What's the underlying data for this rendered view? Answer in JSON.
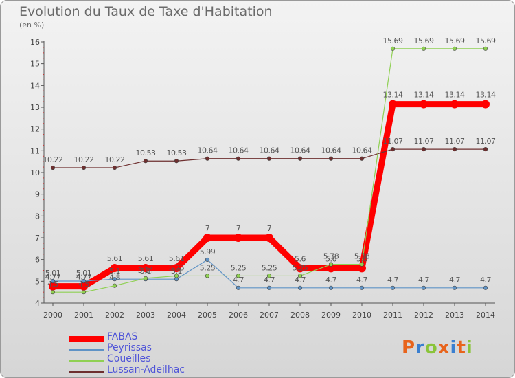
{
  "chart_data": {
    "type": "line",
    "title": "Evolution du Taux de Taxe d'Habitation",
    "subtitle": "(en %)",
    "categories": [
      "2000",
      "2001",
      "2002",
      "2003",
      "2004",
      "2005",
      "2006",
      "2007",
      "2008",
      "2009",
      "2010",
      "2011",
      "2012",
      "2013",
      "2014"
    ],
    "ylim": [
      4,
      16
    ],
    "yticks": [
      4,
      5,
      6,
      7,
      8,
      9,
      10,
      11,
      12,
      13,
      14,
      15,
      16
    ],
    "grid": false,
    "legend_position": "bottom-left",
    "series": [
      {
        "name": "FABAS",
        "color": "#ff0000",
        "values": [
          4.77,
          4.77,
          5.61,
          5.61,
          5.61,
          7,
          7,
          7,
          5.6,
          5.6,
          5.6,
          13.14,
          13.14,
          13.14,
          13.14
        ],
        "labels": [
          "4.77",
          "4.77",
          "5.61",
          "5.61",
          "5.61",
          "7",
          "7",
          "7",
          "5.6",
          "5.6",
          "5.6",
          "13.14",
          "13.14",
          "13.14",
          "13.14"
        ]
      },
      {
        "name": "Peyrissas",
        "color": "#5f93c6",
        "values": [
          5.01,
          5.01,
          5.1,
          5.1,
          5.1,
          5.99,
          4.7,
          4.7,
          4.7,
          4.7,
          4.7,
          4.7,
          4.7,
          4.7,
          4.7
        ],
        "labels": [
          "5.01",
          "5.01",
          "5.1",
          "5.1",
          "5.1",
          "5.99",
          "4.7",
          "4.7",
          "4.7",
          "4.7",
          "4.7",
          "4.7",
          "4.7",
          "4.7",
          "4.7"
        ]
      },
      {
        "name": "Coueilles",
        "color": "#8fd053",
        "values": [
          4.5,
          4.5,
          4.8,
          5.14,
          5.25,
          5.25,
          5.25,
          5.25,
          5.25,
          5.78,
          5.78,
          15.69,
          15.69,
          15.69,
          15.69
        ],
        "labels": [
          "4.5",
          "4.5",
          "4.8",
          "5.14",
          "5.25",
          "5.25",
          "5.25",
          "5.25",
          "5.25",
          "5.78",
          "5.78",
          "15.69",
          "15.69",
          "15.69",
          "15.69"
        ]
      },
      {
        "name": "Lussan-Adeilhac",
        "color": "#6e2f2f",
        "values": [
          10.22,
          10.22,
          10.22,
          10.53,
          10.53,
          10.64,
          10.64,
          10.64,
          10.64,
          10.64,
          10.64,
          11.07,
          11.07,
          11.07,
          11.07
        ],
        "labels": [
          "10.22",
          "10.22",
          "10.22",
          "10.53",
          "10.53",
          "10.64",
          "10.64",
          "10.64",
          "10.64",
          "10.64",
          "10.64",
          "11.07",
          "11.07",
          "11.07",
          "11.07"
        ]
      }
    ]
  },
  "brand": {
    "text": "Proxiti",
    "letter_colors": [
      "#e8641c",
      "#3a7fd0",
      "#8ac43a",
      "#e8641c",
      "#3a7fd0",
      "#e8641c",
      "#8ac43a"
    ]
  }
}
